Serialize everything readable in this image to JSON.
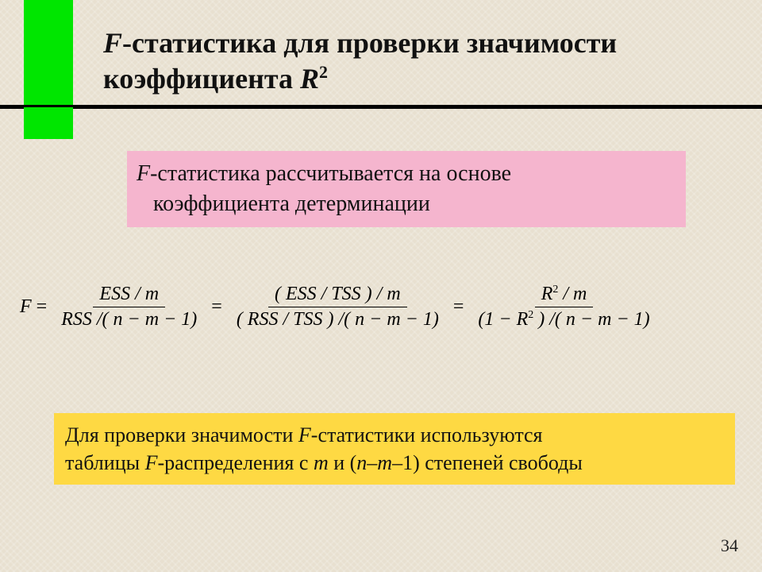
{
  "title": {
    "prefix_F": "F",
    "text": "-статистика для проверки значимости коэффициента ",
    "R": "R",
    "sup": "2"
  },
  "pink": {
    "prefix_F": "F",
    "line1_rest": "-статистика рассчитывается на основе",
    "line2": "коэффициента детерминации"
  },
  "formula": {
    "lhs": "F",
    "eq": "=",
    "f1_num": "ESS / m",
    "f1_den": "RSS /( n − m − 1)",
    "f2_num": "( ESS / TSS ) / m",
    "f2_den": "( RSS / TSS ) /( n − m − 1)",
    "f3_num_a": "R",
    "f3_num_sup": "2",
    "f3_num_b": " / m",
    "f3_den_a": "(1 − R",
    "f3_den_sup": "2",
    "f3_den_b": " ) /( n − m − 1)"
  },
  "orange": {
    "line1_a": "Для проверки значимости ",
    "line1_F": "F",
    "line1_b": "-статистики используются",
    "line2_a": "таблицы ",
    "line2_F": "F",
    "line2_b": "-распределения с ",
    "line2_m": "m",
    "line2_c": " и (",
    "line2_n": "n",
    "line2_d": "–",
    "line2_m2": "m",
    "line2_e": "–1) степеней свободы"
  },
  "pagenum": "34",
  "colors": {
    "accent": "#00e600",
    "pink": "#f5b5ce",
    "orange": "#fed943",
    "bg": "#e8e0d0"
  }
}
